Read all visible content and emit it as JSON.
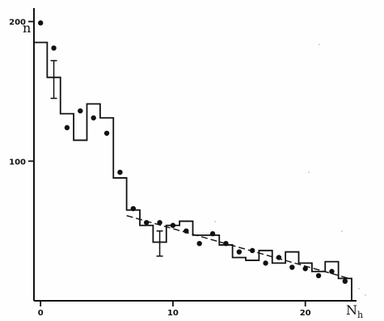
{
  "chart_data": {
    "type": "line",
    "title": "",
    "xlabel": "N",
    "xlabel_subscript": "h",
    "ylabel": "n",
    "xlim": [
      -0.5,
      23.5
    ],
    "ylim": [
      0,
      205
    ],
    "x_ticks": [
      {
        "value": 0,
        "label": "0"
      },
      {
        "value": 10,
        "label": "10"
      },
      {
        "value": 20,
        "label": "20"
      }
    ],
    "y_ticks": [
      {
        "value": 100,
        "label": "100"
      },
      {
        "value": 200,
        "label": "200"
      }
    ],
    "series": [
      {
        "kind": "histogram",
        "edges": [
          -0.5,
          0.5,
          1.5,
          2.5,
          3.5,
          4.5,
          5.5,
          6.5,
          7.5,
          8.5,
          9.5,
          10.5,
          11.5,
          12.5,
          13.5,
          14.5,
          15.5,
          16.5,
          17.5,
          18.5,
          19.5,
          20.5,
          21.5,
          22.5,
          23.5
        ],
        "values": [
          185,
          160,
          134,
          115,
          141,
          131,
          88,
          65,
          54,
          42,
          54,
          57,
          47,
          47,
          40,
          31,
          29,
          36,
          27,
          35,
          27,
          21,
          28,
          16
        ]
      },
      {
        "kind": "scatter",
        "x": [
          0,
          1,
          2,
          3,
          4,
          5,
          6,
          7,
          8,
          9,
          10,
          11,
          12,
          13,
          14,
          15,
          16,
          17,
          18,
          19,
          20,
          21,
          22,
          23
        ],
        "y": [
          199,
          181,
          124,
          136,
          131,
          120,
          92,
          66,
          56,
          56,
          54,
          50,
          41,
          48,
          41,
          35,
          36,
          27,
          31,
          24,
          23,
          18,
          21,
          14
        ]
      },
      {
        "kind": "fit",
        "x": [
          6.5,
          23.3
        ],
        "y": [
          61,
          16
        ]
      }
    ],
    "error_bars": [
      {
        "x": 1,
        "low": 145,
        "high": 172
      },
      {
        "x": 9,
        "low": 32,
        "high": 50
      }
    ]
  }
}
